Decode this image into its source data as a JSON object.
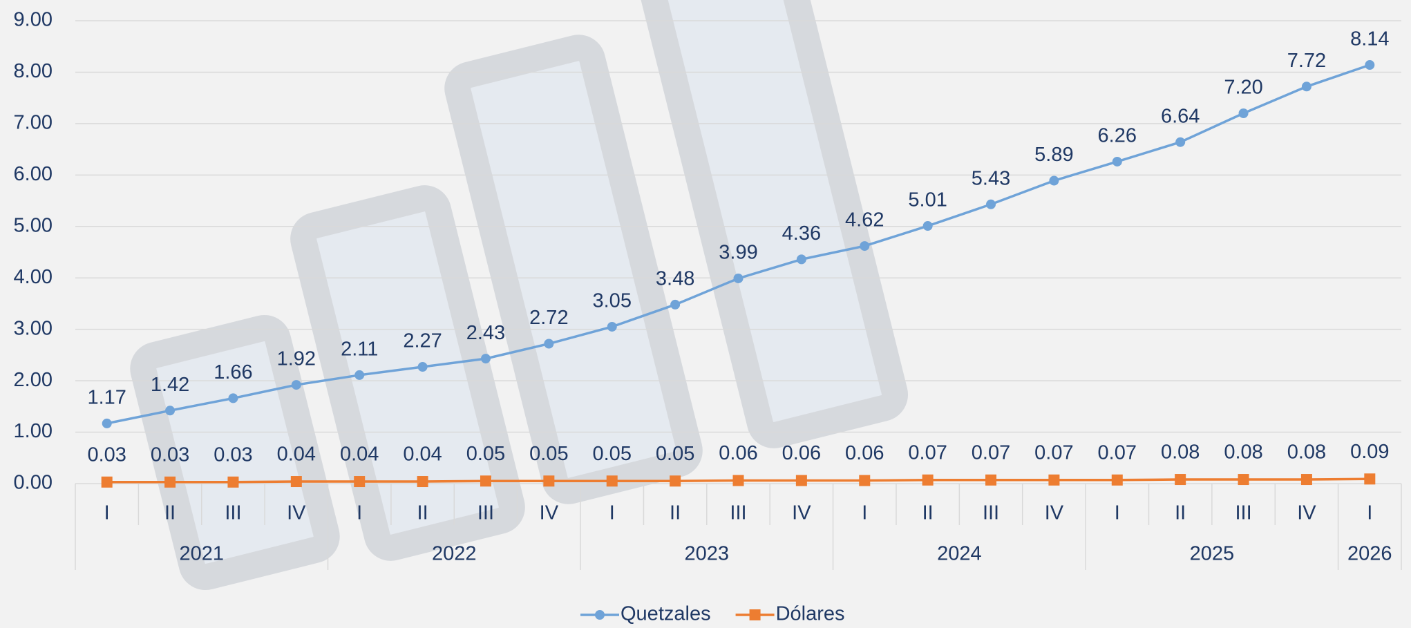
{
  "chart_data": {
    "type": "line",
    "categories": [
      "I",
      "II",
      "III",
      "IV",
      "I",
      "II",
      "III",
      "IV",
      "I",
      "II",
      "III",
      "IV",
      "I",
      "II",
      "III",
      "IV",
      "I",
      "II",
      "III",
      "IV",
      "I"
    ],
    "groups": [
      {
        "label": "2021",
        "size": 4
      },
      {
        "label": "2022",
        "size": 4
      },
      {
        "label": "2023",
        "size": 4
      },
      {
        "label": "2024",
        "size": 4
      },
      {
        "label": "2025",
        "size": 4
      },
      {
        "label": "2026",
        "size": 1
      }
    ],
    "series": [
      {
        "name": "Quetzales",
        "color": "#6fa3d8",
        "marker": "circle",
        "values": [
          1.17,
          1.42,
          1.66,
          1.92,
          2.11,
          2.27,
          2.43,
          2.72,
          3.05,
          3.48,
          3.99,
          4.36,
          4.62,
          5.01,
          5.43,
          5.89,
          6.26,
          6.64,
          7.2,
          7.72,
          8.14
        ],
        "value_labels": [
          "1.17",
          "1.42",
          "1.66",
          "1.92",
          "2.11",
          "2.27",
          "2.43",
          "2.72",
          "3.05",
          "3.48",
          "3.99",
          "4.36",
          "4.62",
          "5.01",
          "5.43",
          "5.89",
          "6.26",
          "6.64",
          "7.20",
          "7.72",
          "8.14"
        ]
      },
      {
        "name": "Dólares",
        "color": "#ed7d31",
        "marker": "square",
        "values": [
          0.03,
          0.03,
          0.03,
          0.04,
          0.04,
          0.04,
          0.05,
          0.05,
          0.05,
          0.05,
          0.06,
          0.06,
          0.06,
          0.07,
          0.07,
          0.07,
          0.07,
          0.08,
          0.08,
          0.08,
          0.09
        ]
      }
    ],
    "ylim": [
      0,
      9
    ],
    "yticks": [
      {
        "value": 0,
        "label": "0.00"
      },
      {
        "value": 1,
        "label": "1.00"
      },
      {
        "value": 2,
        "label": "2.00"
      },
      {
        "value": 3,
        "label": "3.00"
      },
      {
        "value": 4,
        "label": "4.00"
      },
      {
        "value": 5,
        "label": "5.00"
      },
      {
        "value": 6,
        "label": "6.00"
      },
      {
        "value": 7,
        "label": "7.00"
      },
      {
        "value": 8,
        "label": "8.00"
      },
      {
        "value": 9,
        "label": "9.00"
      }
    ],
    "grid": true,
    "legend": "bottom"
  }
}
